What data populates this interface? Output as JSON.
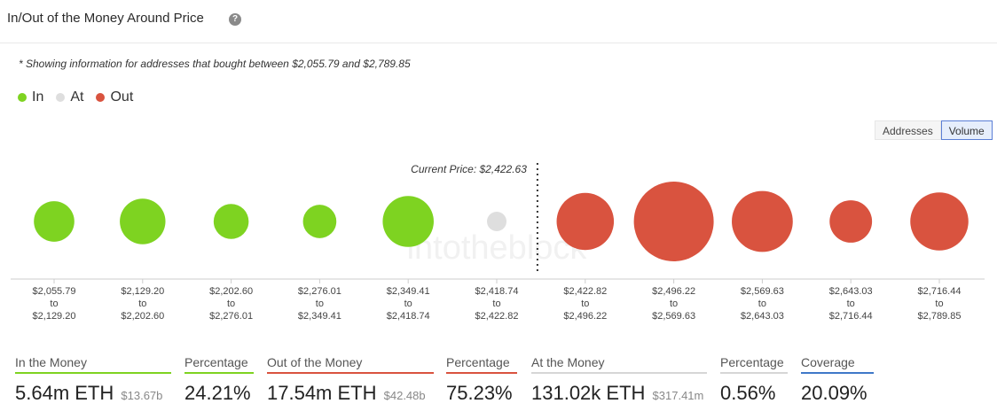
{
  "header": {
    "title": "In/Out of the Money Around Price",
    "help_icon": "question-circle-icon"
  },
  "note": "* Showing information for addresses that bought between $2,055.79 and $2,789.85",
  "legend": [
    {
      "label": "In",
      "color": "#7ed321"
    },
    {
      "label": "At",
      "color": "#dedede"
    },
    {
      "label": "Out",
      "color": "#d9533f"
    }
  ],
  "toggle": {
    "addresses_label": "Addresses",
    "volume_label": "Volume",
    "selected": "Volume"
  },
  "chart_data": {
    "type": "bubble",
    "current_price_label": "Current Price: $2,422.63",
    "current_price": 2422.63,
    "watermark": "intotheblock",
    "colors": {
      "In": "#7ed321",
      "At": "#dedede",
      "Out": "#d9533f"
    },
    "bins": [
      {
        "range": [
          "$2,055.79",
          "$2,129.20"
        ],
        "to": "to",
        "status": "In",
        "value": 1.0
      },
      {
        "range": [
          "$2,129.20",
          "$2,202.60"
        ],
        "to": "to",
        "status": "In",
        "value": 1.27
      },
      {
        "range": [
          "$2,202.60",
          "$2,276.01"
        ],
        "to": "to",
        "status": "In",
        "value": 0.75
      },
      {
        "range": [
          "$2,276.01",
          "$2,349.41"
        ],
        "to": "to",
        "status": "In",
        "value": 0.68
      },
      {
        "range": [
          "$2,349.41",
          "$2,418.74"
        ],
        "to": "to",
        "status": "In",
        "value": 1.59
      },
      {
        "range": [
          "$2,418.74",
          "$2,422.82"
        ],
        "to": "to",
        "status": "At",
        "value": 0.09
      },
      {
        "range": [
          "$2,422.82",
          "$2,496.22"
        ],
        "to": "to",
        "status": "Out",
        "value": 2.0
      },
      {
        "range": [
          "$2,496.22",
          "$2,569.63"
        ],
        "to": "to",
        "status": "Out",
        "value": 3.89
      },
      {
        "range": [
          "$2,569.63",
          "$2,643.03"
        ],
        "to": "to",
        "status": "Out",
        "value": 2.27
      },
      {
        "range": [
          "$2,643.03",
          "$2,716.44"
        ],
        "to": "to",
        "status": "Out",
        "value": 1.1
      },
      {
        "range": [
          "$2,716.44",
          "$2,789.85"
        ],
        "to": "to",
        "status": "Out",
        "value": 2.06
      }
    ]
  },
  "stats": {
    "in_money": {
      "label": "In the Money",
      "value": "5.64m ETH",
      "sub": "$13.67b"
    },
    "in_pct": {
      "label": "Percentage",
      "value": "24.21%"
    },
    "out_money": {
      "label": "Out of the Money",
      "value": "17.54m ETH",
      "sub": "$42.48b"
    },
    "out_pct": {
      "label": "Percentage",
      "value": "75.23%"
    },
    "at_money": {
      "label": "At the Money",
      "value": "131.02k ETH",
      "sub": "$317.41m"
    },
    "at_pct": {
      "label": "Percentage",
      "value": "0.56%"
    },
    "coverage": {
      "label": "Coverage",
      "value": "20.09%"
    }
  }
}
